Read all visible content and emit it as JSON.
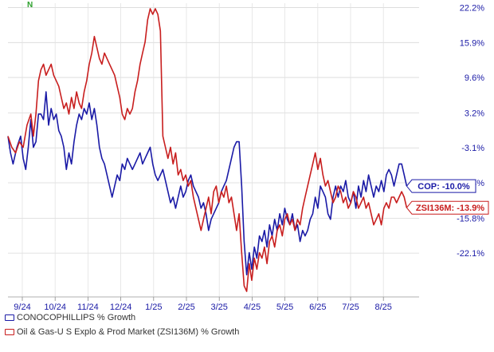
{
  "logo_text": "N",
  "chart_data": {
    "type": "line",
    "y_ticks": [
      "22.2%",
      "15.9%",
      "9.6%",
      "3.2%",
      "-3.1%",
      "-9.4%",
      "-15.8%",
      "-22.1%"
    ],
    "y_tick_values": [
      22.2,
      15.9,
      9.6,
      3.2,
      -3.1,
      -9.4,
      -15.8,
      -22.1
    ],
    "ylim": [
      -30,
      23
    ],
    "x_ticks": [
      "9/24",
      "10/24",
      "11/24",
      "12/24",
      "1/25",
      "2/25",
      "3/25",
      "4/25",
      "5/25",
      "6/25",
      "7/25",
      "8/25"
    ],
    "grid": true,
    "legend_position": "bottom-left",
    "series": [
      {
        "name": "CONOCOPHILLIPS % Growth",
        "end_label": "COP: -10.0%",
        "color": "#1a1aa6",
        "points": [
          [
            0,
            -1
          ],
          [
            0.2,
            -4
          ],
          [
            0.4,
            -6
          ],
          [
            0.7,
            -3
          ],
          [
            1,
            -1
          ],
          [
            1.2,
            -5
          ],
          [
            1.4,
            -7
          ],
          [
            1.6,
            -3
          ],
          [
            1.8,
            2
          ],
          [
            2,
            -3
          ],
          [
            2.2,
            -2
          ],
          [
            2.4,
            3
          ],
          [
            2.6,
            3
          ],
          [
            2.8,
            2
          ],
          [
            3,
            7
          ],
          [
            3.2,
            1
          ],
          [
            3.4,
            4
          ],
          [
            3.6,
            2
          ],
          [
            3.8,
            3
          ],
          [
            4,
            0
          ],
          [
            4.2,
            -1
          ],
          [
            4.4,
            -3
          ],
          [
            4.6,
            -7
          ],
          [
            4.8,
            -4
          ],
          [
            5,
            -6
          ],
          [
            5.2,
            -2
          ],
          [
            5.4,
            1
          ],
          [
            5.6,
            3
          ],
          [
            5.8,
            2
          ],
          [
            6,
            4
          ],
          [
            6.2,
            3
          ],
          [
            6.4,
            5
          ],
          [
            6.6,
            2
          ],
          [
            6.8,
            4
          ],
          [
            7,
            1
          ],
          [
            7.2,
            -3
          ],
          [
            7.4,
            -5
          ],
          [
            7.6,
            -6
          ],
          [
            7.8,
            -8
          ],
          [
            8,
            -10
          ],
          [
            8.2,
            -12
          ],
          [
            8.4,
            -10
          ],
          [
            8.6,
            -8
          ],
          [
            8.8,
            -9
          ],
          [
            9,
            -6
          ],
          [
            9.2,
            -7
          ],
          [
            9.4,
            -5
          ],
          [
            9.6,
            -6
          ],
          [
            9.8,
            -7
          ],
          [
            10,
            -6
          ],
          [
            10.2,
            -5
          ],
          [
            10.4,
            -4
          ],
          [
            10.6,
            -6
          ],
          [
            10.8,
            -5
          ],
          [
            11,
            -4
          ],
          [
            11.2,
            -3
          ],
          [
            11.4,
            -6
          ],
          [
            11.6,
            -8
          ],
          [
            11.8,
            -9
          ],
          [
            12,
            -8
          ],
          [
            12.2,
            -7
          ],
          [
            12.4,
            -9
          ],
          [
            12.6,
            -11
          ],
          [
            12.8,
            -13
          ],
          [
            13,
            -12
          ],
          [
            13.2,
            -14
          ],
          [
            13.4,
            -12
          ],
          [
            13.6,
            -10
          ],
          [
            13.8,
            -12
          ],
          [
            14,
            -11
          ],
          [
            14.2,
            -9
          ],
          [
            14.4,
            -8
          ],
          [
            14.6,
            -10
          ],
          [
            14.8,
            -11
          ],
          [
            15,
            -12
          ],
          [
            15.2,
            -14
          ],
          [
            15.4,
            -13
          ],
          [
            15.6,
            -15
          ],
          [
            15.8,
            -18
          ],
          [
            16,
            -16
          ],
          [
            16.2,
            -15
          ],
          [
            16.4,
            -14
          ],
          [
            16.6,
            -13
          ],
          [
            16.8,
            -11
          ],
          [
            17,
            -10
          ],
          [
            17.2,
            -9
          ],
          [
            17.4,
            -7
          ],
          [
            17.6,
            -5
          ],
          [
            17.8,
            -3
          ],
          [
            18,
            -2
          ],
          [
            18.2,
            -2
          ],
          [
            18.4,
            -10
          ],
          [
            18.6,
            -20
          ],
          [
            18.8,
            -26
          ],
          [
            19,
            -22
          ],
          [
            19.2,
            -25
          ],
          [
            19.4,
            -21
          ],
          [
            19.6,
            -23
          ],
          [
            19.8,
            -19
          ],
          [
            20,
            -20
          ],
          [
            20.2,
            -18
          ],
          [
            20.4,
            -21
          ],
          [
            20.6,
            -17
          ],
          [
            20.8,
            -19
          ],
          [
            21,
            -16
          ],
          [
            21.2,
            -18
          ],
          [
            21.4,
            -15
          ],
          [
            21.6,
            -17
          ],
          [
            21.8,
            -14
          ],
          [
            22,
            -16
          ],
          [
            22.2,
            -17
          ],
          [
            22.4,
            -15
          ],
          [
            22.6,
            -18
          ],
          [
            22.8,
            -17
          ],
          [
            23,
            -20
          ],
          [
            23.2,
            -18
          ],
          [
            23.4,
            -19
          ],
          [
            23.6,
            -18
          ],
          [
            23.8,
            -16
          ],
          [
            24,
            -15
          ],
          [
            24.2,
            -12
          ],
          [
            24.4,
            -14
          ],
          [
            24.6,
            -10
          ],
          [
            24.8,
            -11
          ],
          [
            25,
            -12
          ],
          [
            25.2,
            -15
          ],
          [
            25.4,
            -16
          ],
          [
            25.6,
            -12
          ],
          [
            25.8,
            -10
          ],
          [
            26,
            -12
          ],
          [
            26.2,
            -10
          ],
          [
            26.4,
            -11
          ],
          [
            26.6,
            -9
          ],
          [
            26.8,
            -12
          ],
          [
            27,
            -13
          ],
          [
            27.2,
            -11
          ],
          [
            27.4,
            -14
          ],
          [
            27.6,
            -10
          ],
          [
            27.8,
            -12
          ],
          [
            28,
            -9
          ],
          [
            28.2,
            -11
          ],
          [
            28.4,
            -8
          ],
          [
            28.6,
            -10
          ],
          [
            28.8,
            -12
          ],
          [
            29,
            -10
          ],
          [
            29.2,
            -11
          ],
          [
            29.4,
            -9
          ],
          [
            29.6,
            -11
          ],
          [
            29.8,
            -8
          ],
          [
            30,
            -7
          ],
          [
            30.2,
            -8
          ],
          [
            30.4,
            -10
          ],
          [
            30.6,
            -8
          ],
          [
            30.8,
            -6
          ],
          [
            31,
            -6
          ],
          [
            31.2,
            -8
          ],
          [
            31.4,
            -10
          ]
        ]
      },
      {
        "name": "Oil & Gas-U S Explo & Prod Market (ZSI136M) % Growth",
        "end_label": "ZSI136M: -13.9%",
        "color": "#c81e1e",
        "points": [
          [
            0,
            -1
          ],
          [
            0.3,
            -3
          ],
          [
            0.6,
            -4
          ],
          [
            0.9,
            -2
          ],
          [
            1.2,
            -3
          ],
          [
            1.5,
            1
          ],
          [
            1.8,
            3
          ],
          [
            2,
            -1
          ],
          [
            2.2,
            3
          ],
          [
            2.4,
            9
          ],
          [
            2.6,
            11
          ],
          [
            2.8,
            12
          ],
          [
            3,
            10
          ],
          [
            3.2,
            11
          ],
          [
            3.4,
            12
          ],
          [
            3.6,
            10
          ],
          [
            3.8,
            9
          ],
          [
            4,
            8
          ],
          [
            4.2,
            6
          ],
          [
            4.4,
            4
          ],
          [
            4.6,
            5
          ],
          [
            4.8,
            3
          ],
          [
            5,
            6
          ],
          [
            5.2,
            4
          ],
          [
            5.4,
            7
          ],
          [
            5.6,
            5
          ],
          [
            5.8,
            4
          ],
          [
            6,
            7
          ],
          [
            6.2,
            9
          ],
          [
            6.4,
            12
          ],
          [
            6.6,
            14
          ],
          [
            6.8,
            17
          ],
          [
            7,
            15
          ],
          [
            7.2,
            13
          ],
          [
            7.4,
            12
          ],
          [
            7.6,
            14
          ],
          [
            7.8,
            13
          ],
          [
            8,
            12
          ],
          [
            8.2,
            11
          ],
          [
            8.4,
            10
          ],
          [
            8.6,
            8
          ],
          [
            8.8,
            6
          ],
          [
            9,
            3
          ],
          [
            9.2,
            2
          ],
          [
            9.4,
            4
          ],
          [
            9.6,
            3
          ],
          [
            9.8,
            4
          ],
          [
            10,
            7
          ],
          [
            10.2,
            9
          ],
          [
            10.4,
            12
          ],
          [
            10.6,
            14
          ],
          [
            10.8,
            16
          ],
          [
            11,
            20
          ],
          [
            11.2,
            22
          ],
          [
            11.4,
            21
          ],
          [
            11.6,
            22
          ],
          [
            11.8,
            21
          ],
          [
            12,
            18
          ],
          [
            12.2,
            -1
          ],
          [
            12.4,
            -3
          ],
          [
            12.6,
            -5
          ],
          [
            12.8,
            -3
          ],
          [
            13,
            -6
          ],
          [
            13.2,
            -4
          ],
          [
            13.4,
            -8
          ],
          [
            13.6,
            -7
          ],
          [
            13.8,
            -9
          ],
          [
            14,
            -8
          ],
          [
            14.2,
            -10
          ],
          [
            14.4,
            -9
          ],
          [
            14.6,
            -12
          ],
          [
            14.8,
            -14
          ],
          [
            15,
            -16
          ],
          [
            15.2,
            -18
          ],
          [
            15.4,
            -16
          ],
          [
            15.6,
            -14
          ],
          [
            15.8,
            -12
          ],
          [
            16,
            -15
          ],
          [
            16.2,
            -11
          ],
          [
            16.4,
            -10
          ],
          [
            16.6,
            -13
          ],
          [
            16.8,
            -11
          ],
          [
            17,
            -12
          ],
          [
            17.2,
            -10
          ],
          [
            17.4,
            -13
          ],
          [
            17.6,
            -12
          ],
          [
            17.8,
            -15
          ],
          [
            18,
            -18
          ],
          [
            18.2,
            -15
          ],
          [
            18.4,
            -22
          ],
          [
            18.6,
            -28
          ],
          [
            18.8,
            -29
          ],
          [
            19,
            -24
          ],
          [
            19.2,
            -27
          ],
          [
            19.4,
            -23
          ],
          [
            19.6,
            -25
          ],
          [
            19.8,
            -22
          ],
          [
            20,
            -23
          ],
          [
            20.2,
            -21
          ],
          [
            20.4,
            -24
          ],
          [
            20.6,
            -20
          ],
          [
            20.8,
            -19
          ],
          [
            21,
            -21
          ],
          [
            21.2,
            -18
          ],
          [
            21.4,
            -17
          ],
          [
            21.6,
            -19
          ],
          [
            21.8,
            -16
          ],
          [
            22,
            -15
          ],
          [
            22.2,
            -17
          ],
          [
            22.4,
            -16
          ],
          [
            22.6,
            -18
          ],
          [
            22.8,
            -16
          ],
          [
            23,
            -17
          ],
          [
            23.2,
            -14
          ],
          [
            23.4,
            -12
          ],
          [
            23.6,
            -10
          ],
          [
            23.8,
            -8
          ],
          [
            24,
            -6
          ],
          [
            24.2,
            -4
          ],
          [
            24.4,
            -7
          ],
          [
            24.6,
            -5
          ],
          [
            24.8,
            -8
          ],
          [
            25,
            -10
          ],
          [
            25.2,
            -9
          ],
          [
            25.4,
            -11
          ],
          [
            25.6,
            -13
          ],
          [
            25.8,
            -12
          ],
          [
            26,
            -10
          ],
          [
            26.2,
            -11
          ],
          [
            26.4,
            -13
          ],
          [
            26.6,
            -12
          ],
          [
            26.8,
            -14
          ],
          [
            27,
            -13
          ],
          [
            27.2,
            -11
          ],
          [
            27.4,
            -12
          ],
          [
            27.6,
            -14
          ],
          [
            27.8,
            -13
          ],
          [
            28,
            -12
          ],
          [
            28.2,
            -14
          ],
          [
            28.4,
            -13
          ],
          [
            28.6,
            -15
          ],
          [
            28.8,
            -17
          ],
          [
            29,
            -16
          ],
          [
            29.2,
            -15
          ],
          [
            29.4,
            -17
          ],
          [
            29.6,
            -14
          ],
          [
            29.8,
            -13
          ],
          [
            30,
            -14
          ],
          [
            30.2,
            -12
          ],
          [
            30.4,
            -12
          ],
          [
            30.6,
            -13
          ],
          [
            30.8,
            -12
          ],
          [
            31,
            -11
          ],
          [
            31.2,
            -12
          ],
          [
            31.4,
            -13.9
          ]
        ]
      }
    ]
  }
}
